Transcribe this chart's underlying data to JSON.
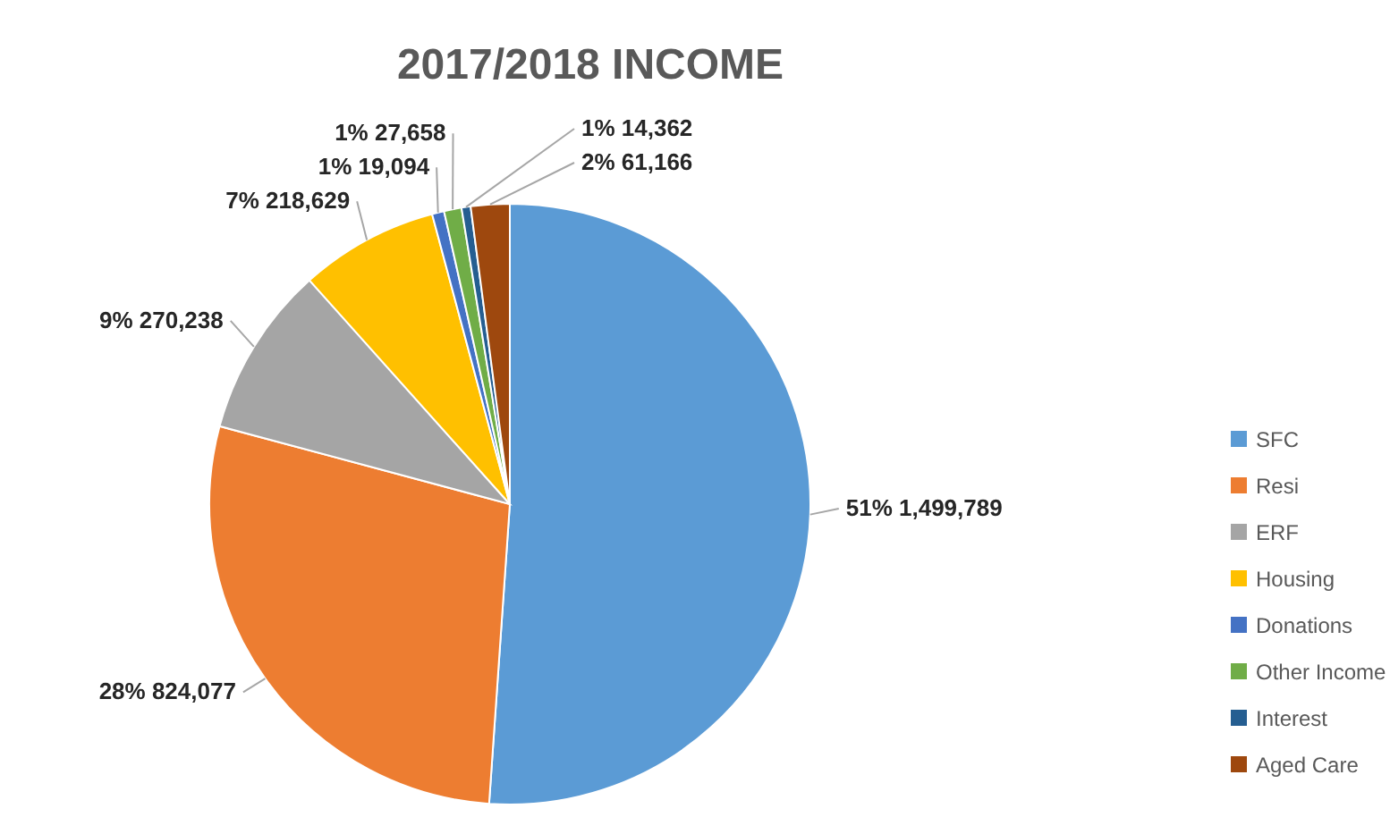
{
  "chart_data": {
    "type": "pie",
    "title": "2017/2018 INCOME",
    "categories": [
      "SFC",
      "Resi",
      "ERF",
      "Housing",
      "Donations",
      "Other Income",
      "Interest",
      "Aged Care"
    ],
    "values": [
      1499789,
      824077,
      270238,
      218629,
      19094,
      27658,
      14362,
      61166
    ],
    "colors": [
      "#5b9bd5",
      "#ed7d31",
      "#a5a5a5",
      "#ffc000",
      "#4472c4",
      "#70ad47",
      "#255e91",
      "#9e480e"
    ],
    "value_labels": [
      "51% 1,499,789",
      "28% 824,077",
      "9% 270,238",
      "7% 218,629",
      "1% 19,094",
      "1% 27,658",
      "1% 14,362",
      "2% 61,166"
    ],
    "legend": "right"
  }
}
